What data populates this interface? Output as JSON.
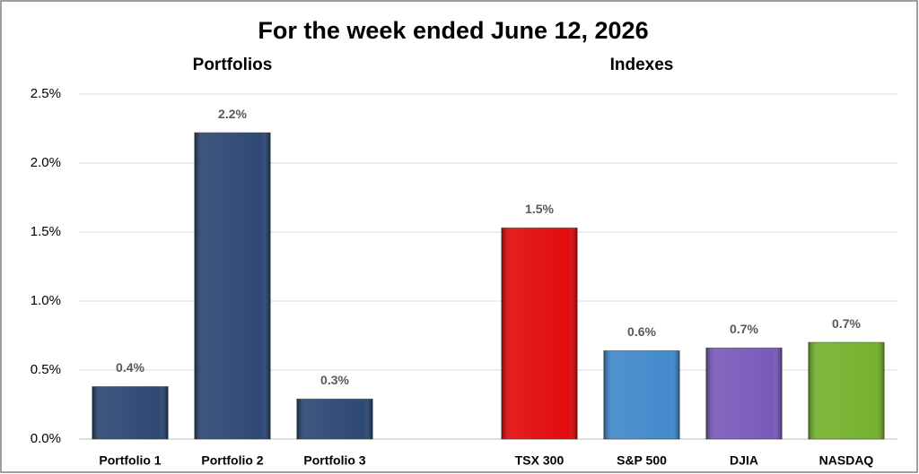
{
  "chart_data": {
    "type": "bar",
    "title": "For the week ended June 12, 2026",
    "group_labels": [
      "Portfolios",
      "Indexes"
    ],
    "categories": [
      "Portfolio 1",
      "Portfolio 2",
      "Portfolio 3",
      null,
      "TSX 300",
      "S&P 500",
      "DJIA",
      "NASDAQ"
    ],
    "values": [
      0.38,
      2.22,
      0.29,
      null,
      1.53,
      0.64,
      0.66,
      0.7
    ],
    "value_labels": [
      "0.4%",
      "2.2%",
      "0.3%",
      null,
      "1.5%",
      "0.6%",
      "0.7%",
      "0.7%"
    ],
    "colors": [
      "#243f6e",
      "#243f6e",
      "#243f6e",
      null,
      "#e00000",
      "#3a84c9",
      "#7352b8",
      "#6fae24"
    ],
    "ylim": [
      0,
      2.5
    ],
    "yticks": [
      {
        "value": 0,
        "label": "0.0%"
      },
      {
        "value": 0.5,
        "label": "0.5%"
      },
      {
        "value": 1,
        "label": "1.0%"
      },
      {
        "value": 1.5,
        "label": "1.5%"
      },
      {
        "value": 2,
        "label": "2.0%"
      },
      {
        "value": 2.5,
        "label": "2.5%"
      }
    ],
    "grid": true
  }
}
